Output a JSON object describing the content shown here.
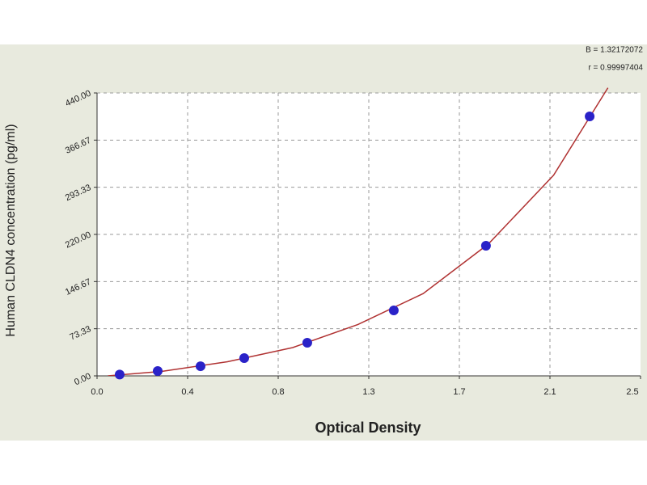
{
  "chart_data": {
    "type": "scatter",
    "x_label": "Optical Density",
    "y_label": "Human  CLDN4 concentration (pg/ml)",
    "annotations": [
      "B = 1.32172072",
      "r = 0.99997404"
    ],
    "x": [
      0.104,
      0.279,
      0.476,
      0.677,
      0.967,
      1.365,
      1.789,
      2.266
    ],
    "values": [
      2,
      7.5,
      15,
      27.7,
      51.5,
      101.8,
      202.4,
      403.5
    ],
    "color": "#2a22c8",
    "curve": {
      "color": "#b03232",
      "x": [
        0.05,
        0.3,
        0.6,
        0.9,
        1.2,
        1.5,
        1.8,
        2.1,
        2.35
      ],
      "y": [
        0,
        7,
        22,
        44,
        80,
        128,
        205,
        312,
        448
      ]
    },
    "xlim": [
      0,
      2.5
    ],
    "ylim": [
      0,
      440
    ],
    "xticks": [
      {
        "value": 0,
        "label": "0.0"
      },
      {
        "value": 0.4167,
        "label": "0.4"
      },
      {
        "value": 0.8333,
        "label": "0.8"
      },
      {
        "value": 1.25,
        "label": "1.3"
      },
      {
        "value": 1.6667,
        "label": "1.7"
      },
      {
        "value": 2.0833,
        "label": "2.1"
      },
      {
        "value": 2.5,
        "label": "2.5"
      }
    ],
    "yticks": [
      {
        "value": 0,
        "label": "0.00"
      },
      73.33,
      146.67,
      {
        "value": 220,
        "label": "220.00"
      },
      293.33,
      366.67,
      {
        "value": 440,
        "label": "440.00"
      }
    ],
    "grid": true
  }
}
